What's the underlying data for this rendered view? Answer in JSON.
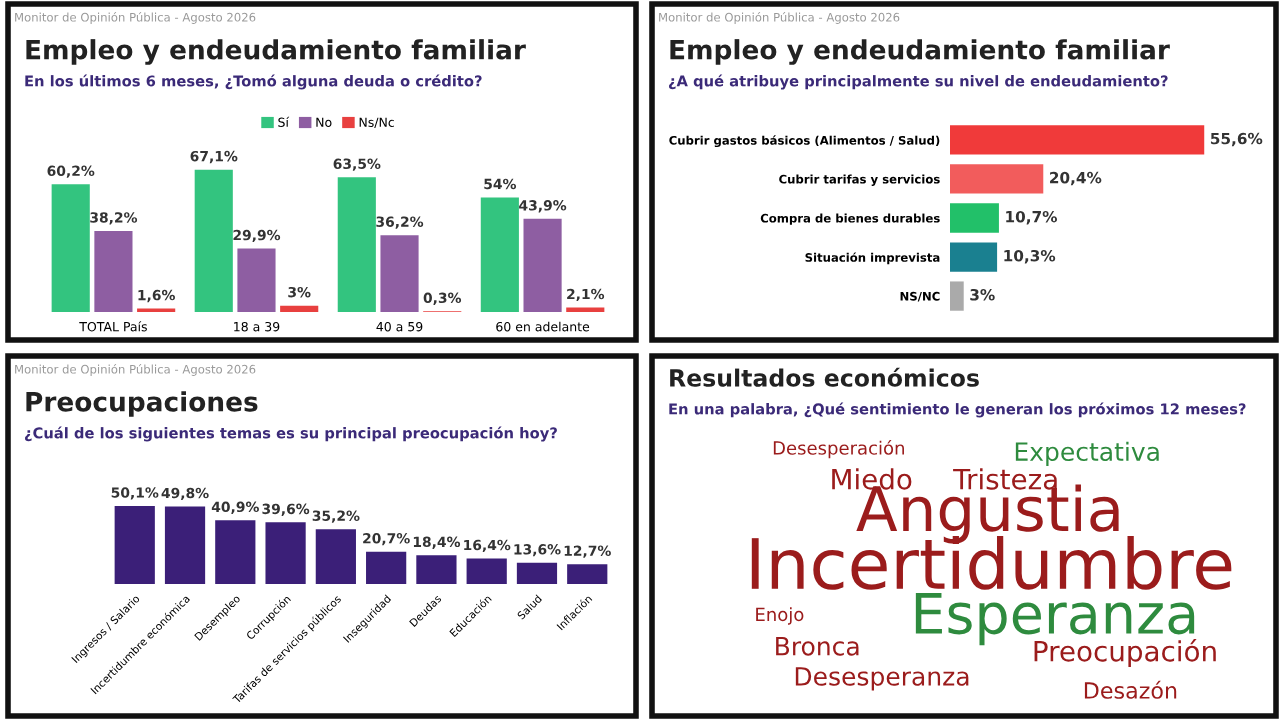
{
  "chart_data": [
    {
      "type": "bar",
      "title": "Empleo y endeudamiento familiar",
      "subtitle": "En los últimos 6 meses, ¿Tomó alguna deuda o crédito?",
      "annotations": [
        "Monitor de Opinión Pública - Agosto 2026"
      ],
      "categories": [
        "TOTAL País",
        "18 a 39",
        "40 a 59",
        "60 en adelante"
      ],
      "legend": "top",
      "tick_labels": "x",
      "series": [
        {
          "name": "Sí",
          "color": "#33c47f",
          "values": [
            60.2,
            67.1,
            63.5,
            54
          ],
          "value_labels": [
            "60,2%",
            "67,1%",
            "63,5%",
            "54%"
          ]
        },
        {
          "name": "No",
          "color": "#8e5ea2",
          "values": [
            38.2,
            29.9,
            36.2,
            43.9
          ],
          "value_labels": [
            "38,2%",
            "29,9%",
            "36,2%",
            "43,9%"
          ]
        },
        {
          "name": "Ns/Nc",
          "color": "#e8403f",
          "values": [
            1.6,
            3,
            0.3,
            2.1
          ],
          "value_labels": [
            "1,6%",
            "3%",
            "0,3%",
            "2,1%"
          ]
        }
      ]
    },
    {
      "type": "bar",
      "orientation": "horizontal",
      "title": "Empleo y endeudamiento familiar",
      "subtitle": "¿A qué atribuye principalmente su nivel de endeudamiento?",
      "annotations": [
        "Monitor de Opinión Pública - Agosto 2026"
      ],
      "categories": [
        "Cubrir gastos básicos (Alimentos / Salud)",
        "Cubrir tarifas y servicios",
        "Compra de bienes durables",
        "Situación imprevista",
        "NS/NC"
      ],
      "tick_labels": "y",
      "values": [
        55.6,
        20.4,
        10.7,
        10.3,
        3
      ],
      "colors": [
        "#f03a3a",
        "#f25c5c",
        "#22c069",
        "#1a8090",
        "#aaaaaa"
      ],
      "value_labels": [
        "55,6%",
        "20,4%",
        "10,7%",
        "10,3%",
        "3%"
      ]
    },
    {
      "type": "bar",
      "title": "Preocupaciones",
      "subtitle": "¿Cuál de los siguientes temas es su principal preocupación hoy?",
      "annotations": [
        "Monitor de Opinión Pública - Agosto 2026"
      ],
      "categories": [
        "Ingresos / Salario",
        "Incertidumbre económica",
        "Desempleo",
        "Corrupción",
        "Tarifas de servicios públicos",
        "Inseguridad",
        "Deudas",
        "Educación",
        "Salud",
        "Inflación"
      ],
      "tick_labels": "x",
      "values": [
        50.1,
        49.8,
        40.9,
        39.6,
        35.2,
        20.7,
        18.4,
        16.4,
        13.6,
        12.7
      ],
      "color": "#3b1f78",
      "value_labels": [
        "50,1%",
        "49,8%",
        "40,9%",
        "39,6%",
        "35,2%",
        "20,7%",
        "18,4%",
        "16,4%",
        "13,6%",
        "12,7%"
      ]
    },
    {
      "type": "other",
      "title": "Resultados económicos",
      "subtitle": "En una palabra, ¿Qué sentimiento le generan los próximos 12 meses?",
      "annotations": [
        "Incertidumbre",
        "Angustia",
        "Esperanza",
        "Miedo",
        "Tristeza",
        "Expectativa",
        "Bronca",
        "Preocupación",
        "Desesperanza",
        "Desazón",
        "Desesperación",
        "Enojo"
      ]
    }
  ]
}
